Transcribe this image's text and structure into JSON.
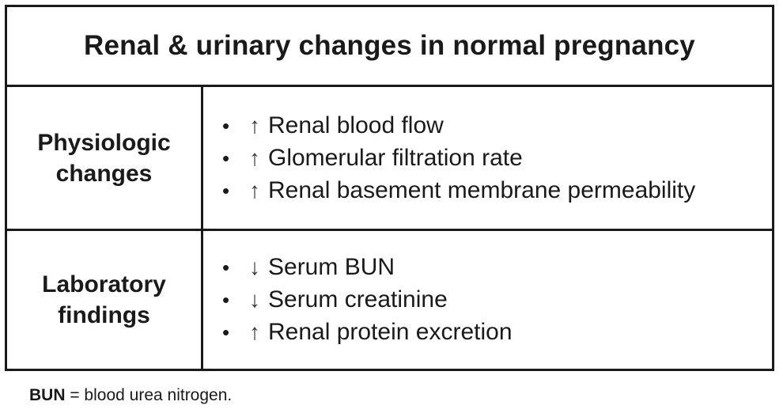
{
  "title": "Renal & urinary changes in normal pregnancy",
  "rows": [
    {
      "label_line1": "Physiologic",
      "label_line2": "changes",
      "items": [
        {
          "arrow": "↑",
          "text": "Renal blood flow"
        },
        {
          "arrow": "↑",
          "text": "Glomerular filtration rate"
        },
        {
          "arrow": "↑",
          "text": "Renal basement membrane permeability"
        }
      ]
    },
    {
      "label_line1": "Laboratory",
      "label_line2": "findings",
      "items": [
        {
          "arrow": "↓",
          "text": "Serum BUN"
        },
        {
          "arrow": "↓",
          "text": "Serum creatinine"
        },
        {
          "arrow": "↑",
          "text": "Renal protein excretion"
        }
      ]
    }
  ],
  "footnote": {
    "abbr": "BUN",
    "definition": " = blood urea nitrogen."
  },
  "bullet": "•"
}
